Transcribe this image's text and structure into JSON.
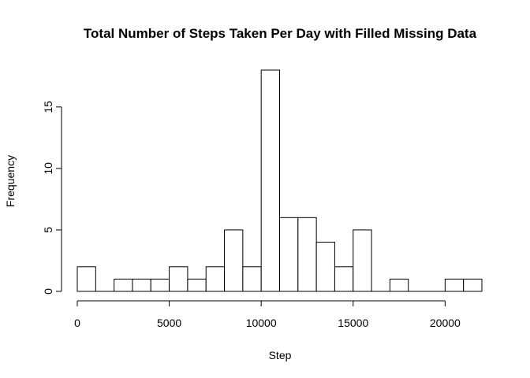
{
  "chart_data": {
    "type": "bar",
    "title": "Total Number of Steps Taken Per Day with Filled Missing Data",
    "xlabel": "Step",
    "ylabel": "Frequency",
    "bin_width": 1000,
    "bins_start": [
      0,
      1000,
      2000,
      3000,
      4000,
      5000,
      6000,
      7000,
      8000,
      9000,
      10000,
      11000,
      12000,
      13000,
      14000,
      15000,
      16000,
      17000,
      18000,
      19000,
      20000,
      21000
    ],
    "values": [
      2,
      0,
      1,
      1,
      1,
      2,
      1,
      2,
      5,
      2,
      18,
      6,
      6,
      4,
      2,
      5,
      0,
      1,
      0,
      0,
      1,
      1
    ],
    "xlim": [
      0,
      22000
    ],
    "ylim": [
      0,
      18
    ],
    "x_ticks": [
      0,
      5000,
      10000,
      15000,
      20000
    ],
    "y_ticks": [
      0,
      5,
      10,
      15
    ],
    "grid": false,
    "colors": {
      "bar_fill": "#ffffff",
      "bar_stroke": "#000000"
    }
  }
}
